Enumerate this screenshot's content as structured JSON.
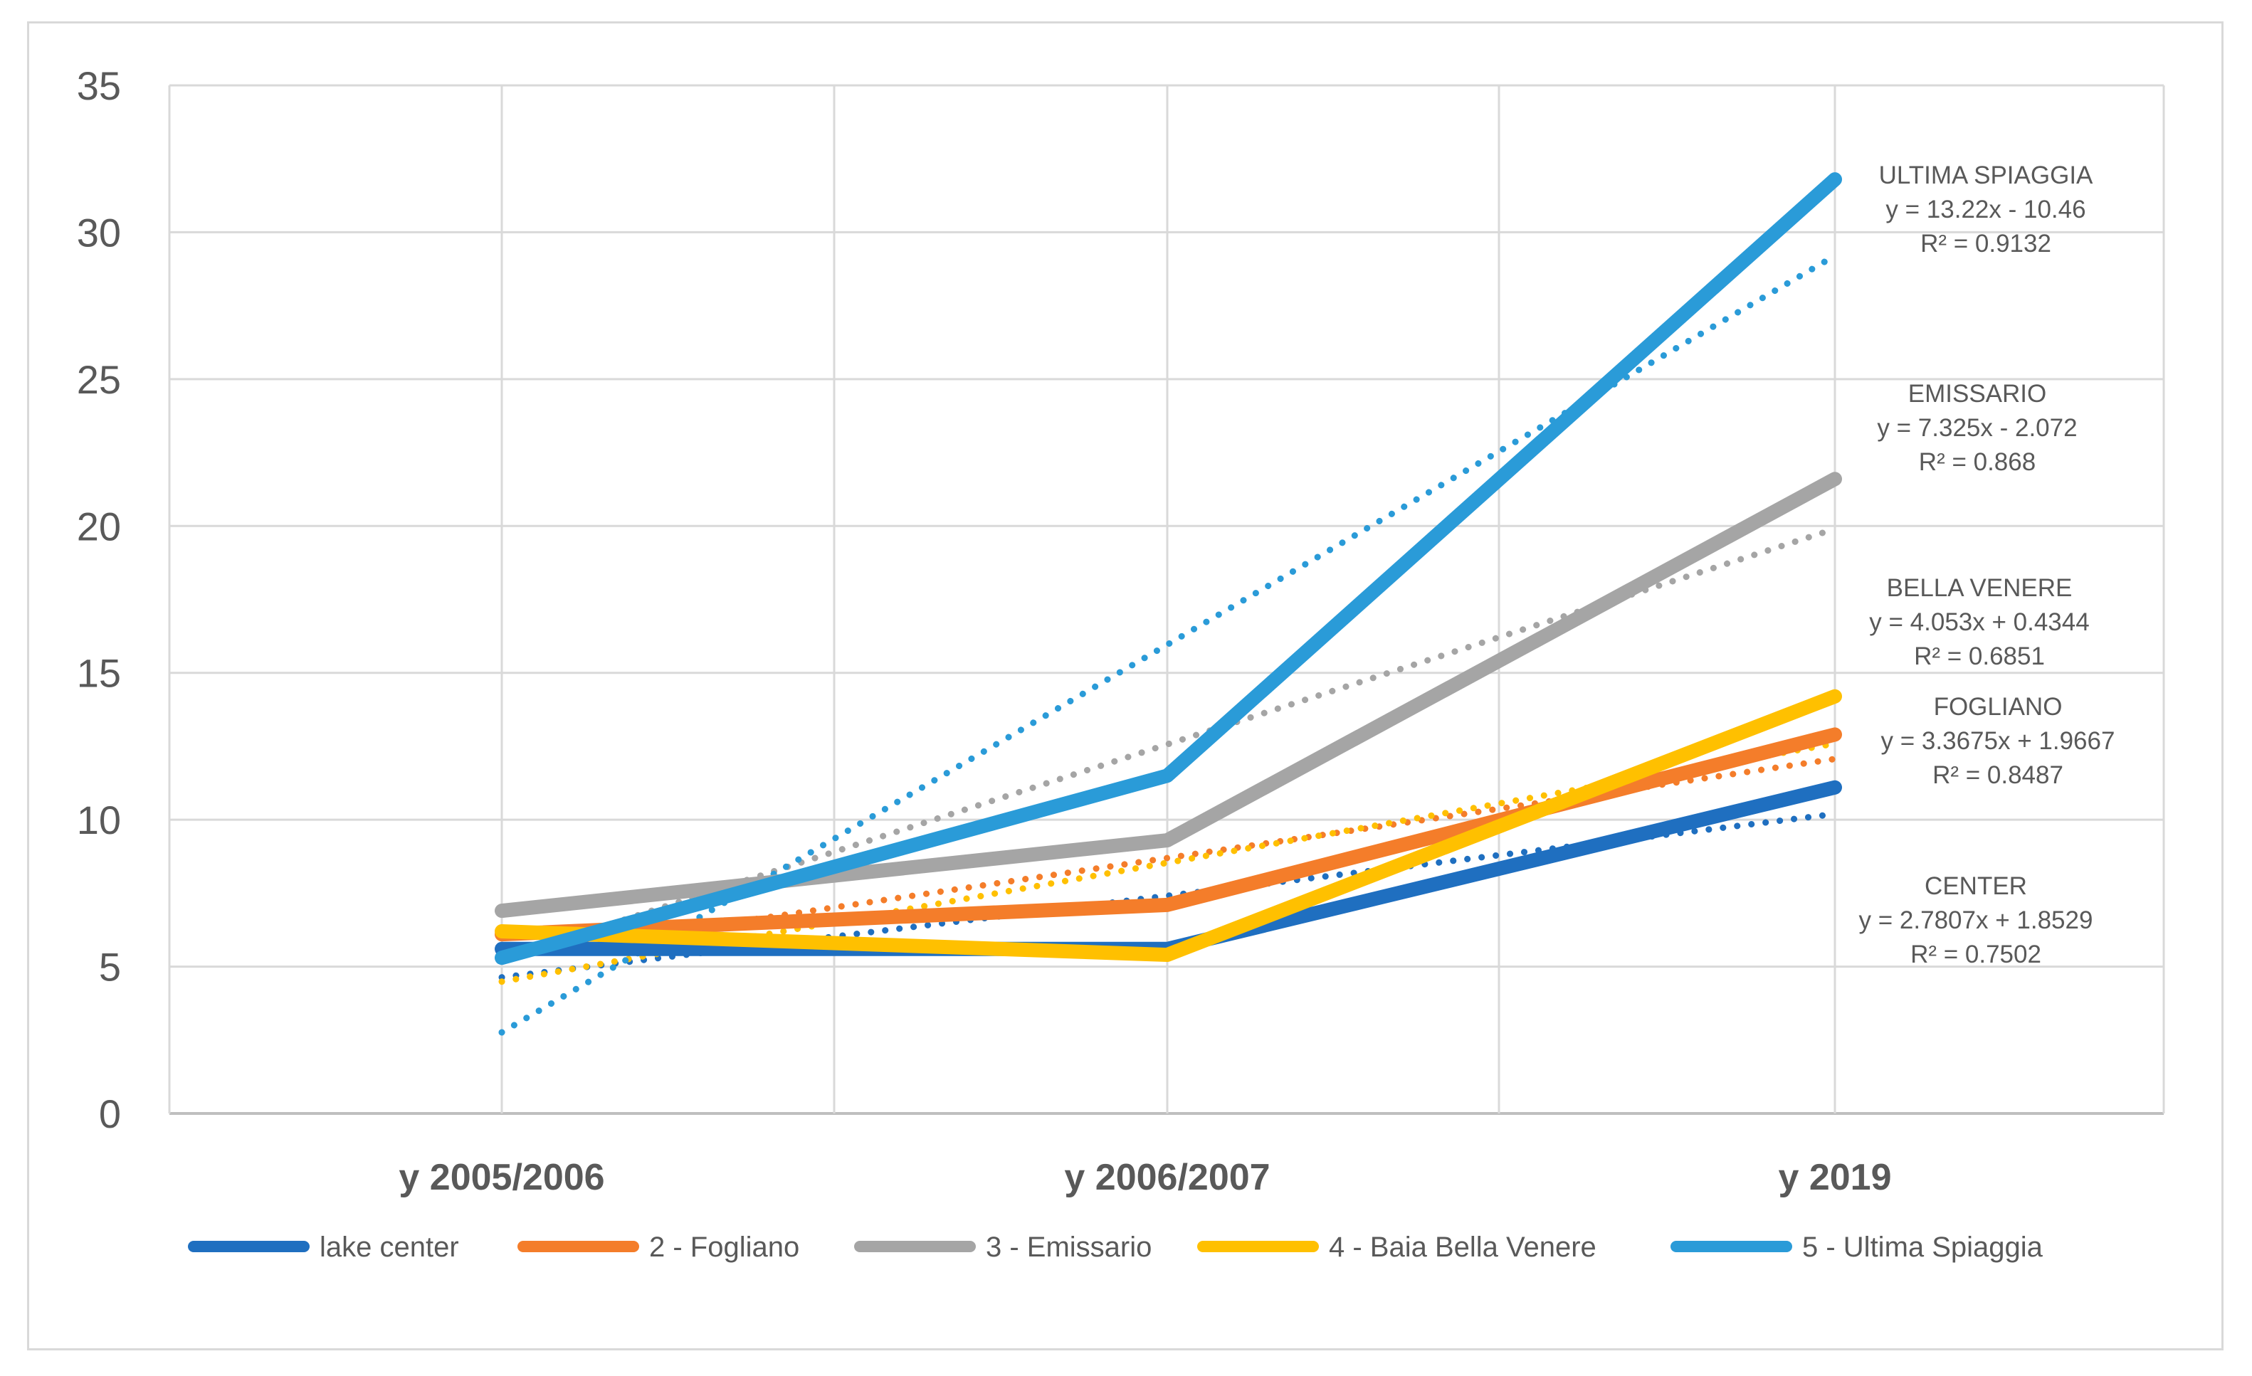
{
  "chart_data": {
    "type": "line",
    "title": "",
    "xlabel": "",
    "ylabel": "",
    "categories": [
      "y 2005/2006",
      "y 2006/2007",
      "y 2019"
    ],
    "ylim": [
      0,
      35
    ],
    "yticks": [
      "0",
      "5",
      "10",
      "15",
      "20",
      "25",
      "30",
      "35"
    ],
    "grid": true,
    "legend_position": "bottom",
    "series": [
      {
        "name": "lake center",
        "color": "#1f6fc0",
        "values": [
          5.6,
          5.6,
          11.1
        ],
        "trend": {
          "slope": 2.7807,
          "intercept": 1.8529
        }
      },
      {
        "name": "2 - Fogliano",
        "color": "#f47d2a",
        "values": [
          6.1,
          7.1,
          12.9
        ],
        "trend": {
          "slope": 3.3675,
          "intercept": 1.9667
        }
      },
      {
        "name": "3 - Emissario",
        "color": "#a5a5a5",
        "values": [
          6.9,
          9.3,
          21.6
        ],
        "trend": {
          "slope": 7.325,
          "intercept": -2.072
        }
      },
      {
        "name": "4 - Baia Bella Venere",
        "color": "#ffc000",
        "values": [
          6.2,
          5.4,
          14.2
        ],
        "trend": {
          "slope": 4.053,
          "intercept": 0.4344
        }
      },
      {
        "name": "5 - Ultima Spiaggia",
        "color": "#2a9bd8",
        "values": [
          5.3,
          11.5,
          31.8
        ],
        "trend": {
          "slope": 13.22,
          "intercept": -10.46
        }
      }
    ],
    "annotations": [
      {
        "title": "ULTIMA SPIAGGIA",
        "equation": "y = 13.22x - 10.46",
        "r2": "R² = 0.9132"
      },
      {
        "title": "EMISSARIO",
        "equation": "y = 7.325x - 2.072",
        "r2": "R² = 0.868"
      },
      {
        "title": "BELLA VENERE",
        "equation": "y = 4.053x + 0.4344",
        "r2": "R² = 0.6851"
      },
      {
        "title": "FOGLIANO",
        "equation": "y = 3.3675x + 1.9667",
        "r2": "R² = 0.8487"
      },
      {
        "title": "CENTER",
        "equation": "y = 2.7807x + 1.8529",
        "r2": "R² = 0.7502"
      }
    ]
  }
}
